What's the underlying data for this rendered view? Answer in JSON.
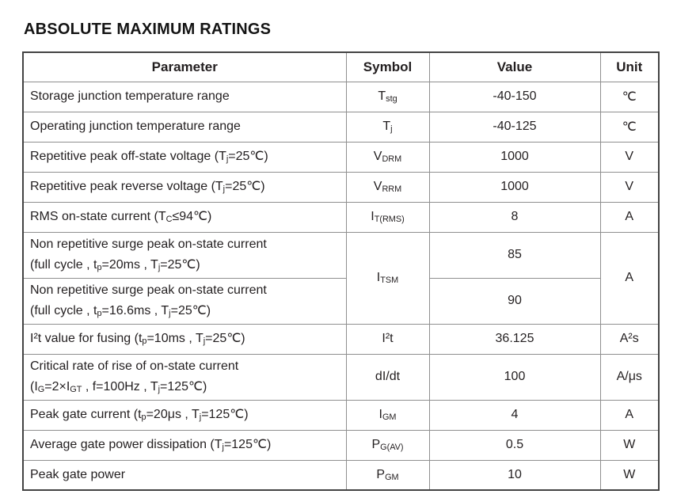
{
  "title": "ABSOLUTE MAXIMUM RATINGS",
  "colors": {
    "text": "#231f20",
    "border_inner": "#8f8f8f",
    "border_outer": "#434343",
    "background": "#ffffff"
  },
  "table": {
    "headers": [
      "Parameter",
      "Symbol",
      "Value",
      "Unit"
    ],
    "rows": [
      {
        "parameter": [
          {
            "t": "Storage junction temperature range"
          }
        ],
        "symbol": [
          {
            "t": "T"
          },
          {
            "t": "stg",
            "s": "sub"
          }
        ],
        "value": "-40-150",
        "unit": [
          {
            "t": "℃"
          }
        ]
      },
      {
        "parameter": [
          {
            "t": "Operating junction temperature range"
          }
        ],
        "symbol": [
          {
            "t": "T"
          },
          {
            "t": "j",
            "s": "sub"
          }
        ],
        "value": "-40-125",
        "unit": [
          {
            "t": "℃"
          }
        ]
      },
      {
        "parameter": [
          {
            "t": "Repetitive peak off-state voltage (T"
          },
          {
            "t": "j",
            "s": "sub"
          },
          {
            "t": "=25℃)"
          }
        ],
        "symbol": [
          {
            "t": "V"
          },
          {
            "t": "DRM",
            "s": "sub"
          }
        ],
        "value": "1000",
        "unit": [
          {
            "t": "V"
          }
        ]
      },
      {
        "parameter": [
          {
            "t": "Repetitive peak reverse voltage (T"
          },
          {
            "t": "j",
            "s": "sub"
          },
          {
            "t": "=25℃)"
          }
        ],
        "symbol": [
          {
            "t": "V"
          },
          {
            "t": "RRM",
            "s": "sub"
          }
        ],
        "value": "1000",
        "unit": [
          {
            "t": "V"
          }
        ]
      },
      {
        "parameter": [
          {
            "t": "RMS on-state current (T"
          },
          {
            "t": "C",
            "s": "sub"
          },
          {
            "t": "≤94℃)"
          }
        ],
        "symbol": [
          {
            "t": "I"
          },
          {
            "t": "T(RMS)",
            "s": "sub"
          }
        ],
        "value": "8",
        "unit": [
          {
            "t": "A"
          }
        ]
      },
      {
        "parameter": [
          {
            "t": "Non repetitive surge peak on-state current"
          },
          {
            "s": "br"
          },
          {
            "t": "(full cycle , t"
          },
          {
            "t": "p",
            "s": "sub"
          },
          {
            "t": "=20ms , T"
          },
          {
            "t": "j",
            "s": "sub"
          },
          {
            "t": "=25℃)"
          }
        ],
        "symbol": [
          {
            "t": "I"
          },
          {
            "t": "TSM",
            "s": "sub"
          }
        ],
        "value": "85",
        "unit": [
          {
            "t": "A"
          }
        ]
      },
      {
        "parameter": [
          {
            "t": "Non repetitive surge peak on-state current"
          },
          {
            "s": "br"
          },
          {
            "t": "(full cycle , t"
          },
          {
            "t": "p",
            "s": "sub"
          },
          {
            "t": "=16.6ms , T"
          },
          {
            "t": "j",
            "s": "sub"
          },
          {
            "t": "=25℃)"
          }
        ],
        "value": "90"
      },
      {
        "parameter": [
          {
            "t": "I²t value for fusing (t"
          },
          {
            "t": "p",
            "s": "sub"
          },
          {
            "t": "=10ms , T"
          },
          {
            "t": "j",
            "s": "sub"
          },
          {
            "t": "=25℃)"
          }
        ],
        "symbol": [
          {
            "t": "I²t"
          }
        ],
        "value": "36.125",
        "unit": [
          {
            "t": "A²s"
          }
        ]
      },
      {
        "parameter": [
          {
            "t": "Critical rate of rise of on-state current"
          },
          {
            "s": "br"
          },
          {
            "t": "(I"
          },
          {
            "t": "G",
            "s": "sub"
          },
          {
            "t": "=2×I"
          },
          {
            "t": "GT",
            "s": "sub"
          },
          {
            "t": " , f=100Hz , T"
          },
          {
            "t": "j",
            "s": "sub"
          },
          {
            "t": "=125℃)"
          }
        ],
        "symbol": [
          {
            "t": "dI/dt"
          }
        ],
        "value": "100",
        "unit": [
          {
            "t": "A/μs"
          }
        ]
      },
      {
        "parameter": [
          {
            "t": "Peak gate current (t"
          },
          {
            "t": "p",
            "s": "sub"
          },
          {
            "t": "=20μs , T"
          },
          {
            "t": "j",
            "s": "sub"
          },
          {
            "t": "=125℃)"
          }
        ],
        "symbol": [
          {
            "t": "I"
          },
          {
            "t": "GM",
            "s": "sub"
          }
        ],
        "value": "4",
        "unit": [
          {
            "t": "A"
          }
        ]
      },
      {
        "parameter": [
          {
            "t": "Average gate power dissipation (T"
          },
          {
            "t": "j",
            "s": "sub"
          },
          {
            "t": "=125℃)"
          }
        ],
        "symbol": [
          {
            "t": "P"
          },
          {
            "t": "G(AV)",
            "s": "sub"
          }
        ],
        "value": "0.5",
        "unit": [
          {
            "t": "W"
          }
        ]
      },
      {
        "parameter": [
          {
            "t": "Peak gate power"
          }
        ],
        "symbol": [
          {
            "t": "P"
          },
          {
            "t": "GM",
            "s": "sub"
          }
        ],
        "value": "10",
        "unit": [
          {
            "t": "W"
          }
        ]
      }
    ]
  }
}
